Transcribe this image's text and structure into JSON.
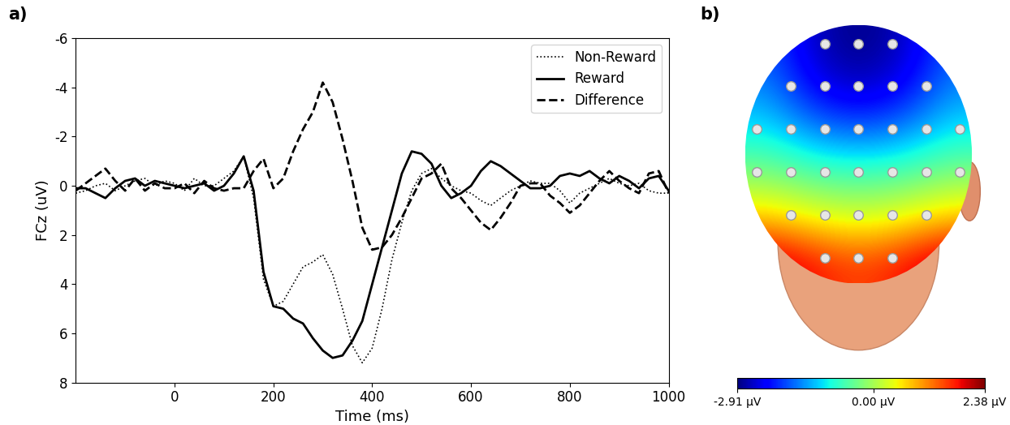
{
  "chart_data": [
    {
      "type": "line",
      "panel_label": "a)",
      "x_label": "Time (ms)",
      "y_label": "FCz (uV)",
      "xlim": [
        -200,
        1000
      ],
      "xticks": [
        0,
        200,
        400,
        600,
        800,
        1000
      ],
      "ylim": [
        8,
        -6
      ],
      "yticks": [
        -6,
        -4,
        -2,
        0,
        2,
        4,
        6,
        8
      ],
      "legend": "upper right",
      "x": [
        -200,
        -180,
        -160,
        -140,
        -120,
        -100,
        -80,
        -60,
        -40,
        -20,
        0,
        20,
        40,
        60,
        80,
        100,
        120,
        140,
        160,
        180,
        200,
        220,
        240,
        260,
        280,
        300,
        320,
        340,
        360,
        380,
        400,
        420,
        440,
        460,
        480,
        500,
        520,
        540,
        560,
        580,
        600,
        620,
        640,
        660,
        680,
        700,
        720,
        740,
        760,
        780,
        800,
        820,
        840,
        860,
        880,
        900,
        920,
        940,
        960,
        980,
        1000
      ],
      "series": [
        {
          "name": "Non-Reward",
          "color": "#000000",
          "line_style": "dotted",
          "values": [
            0.3,
            0.2,
            0.0,
            -0.1,
            0.2,
            0.0,
            -0.2,
            -0.3,
            0.0,
            -0.2,
            -0.1,
            0.2,
            -0.3,
            0.0,
            0.0,
            -0.3,
            -0.6,
            -1.2,
            0.5,
            3.8,
            4.9,
            4.7,
            4.0,
            3.3,
            3.1,
            2.8,
            3.6,
            5.0,
            6.5,
            7.2,
            6.6,
            5.0,
            3.0,
            1.5,
            0.2,
            -0.5,
            -0.7,
            -0.3,
            0.0,
            0.2,
            0.3,
            0.6,
            0.8,
            0.5,
            0.2,
            0.0,
            -0.2,
            -0.1,
            -0.1,
            0.2,
            0.7,
            0.3,
            0.1,
            -0.1,
            -0.3,
            -0.1,
            0.0,
            -0.1,
            0.2,
            0.3,
            0.3
          ]
        },
        {
          "name": "Reward",
          "color": "#000000",
          "line_style": "solid",
          "values": [
            0.1,
            0.1,
            0.3,
            0.5,
            0.1,
            -0.2,
            -0.3,
            0.0,
            -0.2,
            -0.1,
            0.0,
            0.1,
            0.0,
            -0.1,
            0.2,
            0.0,
            -0.5,
            -1.2,
            0.2,
            3.5,
            4.9,
            5.0,
            5.4,
            5.6,
            6.2,
            6.7,
            7.0,
            6.9,
            6.3,
            5.5,
            4.0,
            2.5,
            1.0,
            -0.5,
            -1.4,
            -1.3,
            -0.9,
            0.0,
            0.5,
            0.3,
            0.0,
            -0.6,
            -1.0,
            -0.8,
            -0.5,
            -0.2,
            0.1,
            0.1,
            0.0,
            -0.4,
            -0.5,
            -0.4,
            -0.6,
            -0.3,
            -0.1,
            -0.4,
            -0.2,
            0.1,
            -0.3,
            -0.4,
            0.2
          ]
        },
        {
          "name": "Difference",
          "color": "#000000",
          "line_style": "dashed",
          "values": [
            0.2,
            -0.1,
            -0.4,
            -0.7,
            -0.2,
            0.2,
            -0.3,
            0.2,
            -0.1,
            0.1,
            0.1,
            -0.1,
            0.3,
            -0.2,
            0.1,
            0.2,
            0.1,
            0.1,
            -0.6,
            -1.1,
            0.1,
            -0.3,
            -1.4,
            -2.3,
            -3.0,
            -4.2,
            -3.4,
            -1.9,
            -0.2,
            1.7,
            2.6,
            2.5,
            2.0,
            1.3,
            0.5,
            -0.3,
            -0.5,
            -0.9,
            0.1,
            0.5,
            1.0,
            1.5,
            1.8,
            1.3,
            0.7,
            0.0,
            -0.1,
            -0.1,
            0.4,
            0.7,
            1.1,
            0.8,
            0.3,
            -0.2,
            -0.6,
            -0.2,
            0.1,
            0.3,
            -0.5,
            -0.6,
            0.3
          ]
        }
      ]
    },
    {
      "type": "heatmap",
      "panel_label": "b)",
      "cells": [
        [
          -1.8,
          -2.6,
          -2.9,
          -2.6,
          -1.8
        ],
        [
          -1.5,
          -2.3,
          -2.6,
          -2.3,
          -1.5
        ],
        [
          -1.0,
          -1.5,
          -1.7,
          -1.5,
          -1.0
        ],
        [
          -0.2,
          -0.5,
          -0.6,
          -0.5,
          -0.2
        ],
        [
          0.8,
          0.5,
          0.3,
          0.5,
          0.8
        ],
        [
          2.2,
          1.8,
          1.5,
          1.8,
          2.3
        ]
      ],
      "colorbar_range": [
        -2.91,
        2.38
      ],
      "colorbar_ticks": [
        {
          "value": -2.91,
          "label": "-2.91 µV"
        },
        {
          "value": 0.0,
          "label": "0.00 µV"
        },
        {
          "value": 2.38,
          "label": "2.38 µV"
        }
      ]
    }
  ]
}
